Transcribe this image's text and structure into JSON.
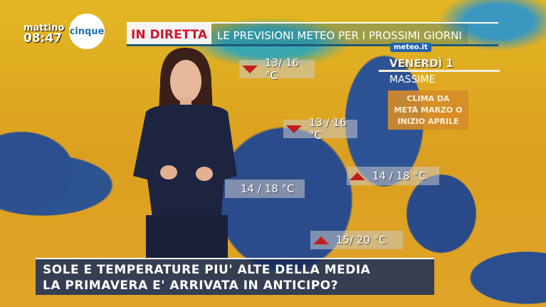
{
  "channel": {
    "logo_left": "mattino",
    "logo_right": "cinque",
    "time": "08:47"
  },
  "banner": {
    "live": "IN DIRETTA",
    "headline": "LE PREVISIONI METEO PER I PROSSIMI GIORNI"
  },
  "forecast": {
    "brand": "meteo.it",
    "day": "VENERDÌ 1",
    "type": "MASSIME",
    "note_lines": [
      "CLIMA DA",
      "METÀ MARZO O",
      "INIZIO APRILE"
    ]
  },
  "temperatures": [
    {
      "value": "13/ 16 °C",
      "trend": "down"
    },
    {
      "value": "13 / 16 °C",
      "trend": "down"
    },
    {
      "value": "14 / 18 °C",
      "trend": "none"
    },
    {
      "value": "14 / 18 °C",
      "trend": "up"
    },
    {
      "value": "15/ 20 °C",
      "trend": "up"
    }
  ],
  "ticker": {
    "line1": "SOLE E TEMPERATURE PIU' ALTE DELLA MEDIA",
    "line2": "LA PRIMAVERA E' ARRIVATA IN ANTICIPO?"
  },
  "colors": {
    "live_red": "#d1172e",
    "ticker_bg": "#192d5a",
    "trend_red": "#c21d1d"
  }
}
